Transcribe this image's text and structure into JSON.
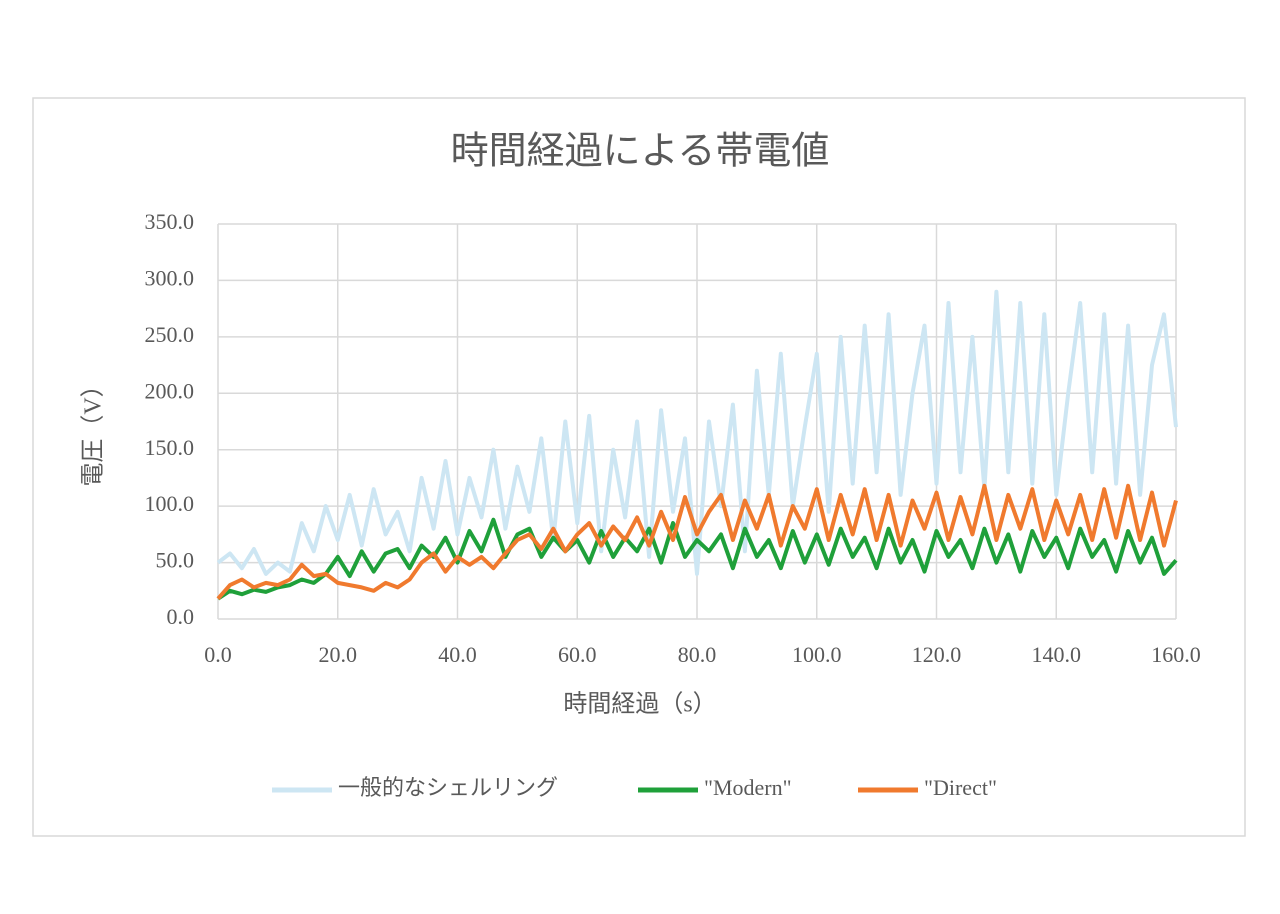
{
  "chart_data": {
    "type": "line",
    "title": "時間経過による帯電値",
    "x_label": "時間経過（s）",
    "y_label": "電圧（V）",
    "x": [
      0,
      2,
      4,
      6,
      8,
      10,
      12,
      14,
      16,
      18,
      20,
      22,
      24,
      26,
      28,
      30,
      32,
      34,
      36,
      38,
      40,
      42,
      44,
      46,
      48,
      50,
      52,
      54,
      56,
      58,
      60,
      62,
      64,
      66,
      68,
      70,
      72,
      74,
      76,
      78,
      80,
      82,
      84,
      86,
      88,
      90,
      92,
      94,
      96,
      98,
      100,
      102,
      104,
      106,
      108,
      110,
      112,
      114,
      116,
      118,
      120,
      122,
      124,
      126,
      128,
      130,
      132,
      134,
      136,
      138,
      140,
      142,
      144,
      146,
      148,
      150,
      152,
      154,
      156,
      158,
      160
    ],
    "series": [
      {
        "name": "一般的なシェルリング",
        "color": "#cde6f3",
        "values": [
          50,
          58,
          45,
          62,
          40,
          50,
          42,
          85,
          60,
          100,
          70,
          110,
          65,
          115,
          75,
          95,
          60,
          125,
          80,
          140,
          75,
          125,
          90,
          150,
          80,
          135,
          95,
          160,
          70,
          175,
          85,
          180,
          60,
          150,
          90,
          175,
          55,
          185,
          95,
          160,
          40,
          175,
          100,
          190,
          60,
          220,
          110,
          235,
          100,
          170,
          235,
          95,
          250,
          120,
          260,
          130,
          270,
          110,
          200,
          260,
          120,
          280,
          130,
          250,
          115,
          290,
          130,
          280,
          120,
          270,
          110,
          200,
          280,
          130,
          270,
          120,
          260,
          110,
          225,
          270,
          170
        ]
      },
      {
        "name": "\"Modern\"",
        "color": "#1fa03a",
        "values": [
          18,
          25,
          22,
          26,
          24,
          28,
          30,
          35,
          32,
          40,
          55,
          38,
          60,
          42,
          58,
          62,
          45,
          65,
          55,
          72,
          50,
          78,
          60,
          88,
          55,
          75,
          80,
          55,
          72,
          60,
          70,
          50,
          78,
          55,
          72,
          60,
          80,
          50,
          85,
          55,
          70,
          60,
          75,
          45,
          80,
          55,
          70,
          45,
          78,
          50,
          75,
          48,
          80,
          55,
          72,
          45,
          80,
          50,
          70,
          42,
          78,
          55,
          70,
          45,
          80,
          50,
          75,
          42,
          78,
          55,
          72,
          45,
          80,
          55,
          70,
          42,
          78,
          50,
          72,
          40,
          52
        ]
      },
      {
        "name": "\"Direct\"",
        "color": "#f07a2e",
        "values": [
          18,
          30,
          35,
          28,
          32,
          30,
          35,
          48,
          38,
          40,
          32,
          30,
          28,
          25,
          32,
          28,
          35,
          50,
          58,
          42,
          55,
          48,
          55,
          45,
          58,
          70,
          75,
          62,
          80,
          60,
          75,
          85,
          65,
          82,
          70,
          90,
          65,
          95,
          70,
          108,
          75,
          95,
          110,
          70,
          105,
          80,
          110,
          65,
          100,
          80,
          115,
          70,
          110,
          75,
          115,
          70,
          110,
          65,
          105,
          80,
          112,
          70,
          108,
          75,
          118,
          70,
          110,
          80,
          115,
          70,
          105,
          75,
          110,
          70,
          115,
          72,
          118,
          70,
          112,
          65,
          105
        ]
      }
    ],
    "xlim": [
      0,
      160
    ],
    "ylim": [
      0,
      350
    ],
    "xticks": [
      {
        "value": 0,
        "label": "0.0"
      },
      {
        "value": 20,
        "label": "20.0"
      },
      {
        "value": 40,
        "label": "40.0"
      },
      {
        "value": 60,
        "label": "60.0"
      },
      {
        "value": 80,
        "label": "80.0"
      },
      {
        "value": 100,
        "label": "100.0"
      },
      {
        "value": 120,
        "label": "120.0"
      },
      {
        "value": 140,
        "label": "140.0"
      },
      {
        "value": 160,
        "label": "160.0"
      }
    ],
    "yticks": [
      {
        "value": 0,
        "label": "0.0"
      },
      {
        "value": 50,
        "label": "50.0"
      },
      {
        "value": 100,
        "label": "100.0"
      },
      {
        "value": 150,
        "label": "150.0"
      },
      {
        "value": 200,
        "label": "200.0"
      },
      {
        "value": 250,
        "label": "250.0"
      },
      {
        "value": 300,
        "label": "300.0"
      },
      {
        "value": 350,
        "label": "350.0"
      }
    ],
    "grid": true,
    "legend": "bottom"
  }
}
